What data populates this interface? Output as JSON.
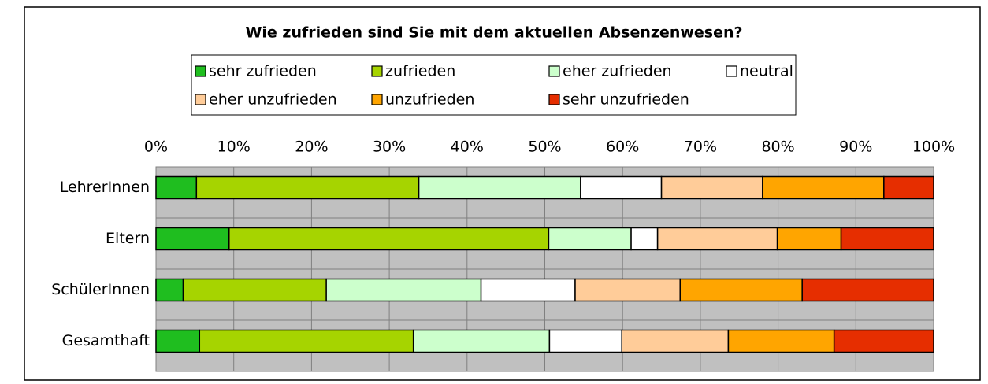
{
  "chart_data": {
    "type": "stacked-bar-horizontal",
    "title": "Wie zufrieden sind Sie mit dem aktuellen Absenzenwesen?",
    "categories": [
      "LehrerInnen",
      "Eltern",
      "SchülerInnen",
      "Gesamthaft"
    ],
    "series": [
      {
        "name": "sehr zufrieden",
        "color": "#1fbe1f",
        "values": [
          5.2,
          9.4,
          3.5,
          5.6
        ]
      },
      {
        "name": "zufrieden",
        "color": "#a6d400",
        "values": [
          28.6,
          41.1,
          18.4,
          27.5
        ]
      },
      {
        "name": "eher zufrieden",
        "color": "#ccffcc",
        "values": [
          20.8,
          10.6,
          19.9,
          17.5
        ]
      },
      {
        "name": "neutral",
        "color": "#ffffff",
        "values": [
          10.4,
          3.4,
          12.1,
          9.3
        ]
      },
      {
        "name": "eher unzufrieden",
        "color": "#ffcc99",
        "values": [
          13.0,
          15.4,
          13.5,
          13.7
        ]
      },
      {
        "name": "unzufrieden",
        "color": "#ffa500",
        "values": [
          15.6,
          8.2,
          15.7,
          13.6
        ]
      },
      {
        "name": "sehr unzufrieden",
        "color": "#e62e00",
        "values": [
          6.4,
          11.9,
          16.9,
          12.8
        ]
      }
    ],
    "xlim": [
      0,
      100
    ],
    "xticks": [
      {
        "value": 0,
        "label": "0%"
      },
      {
        "value": 10,
        "label": "10%"
      },
      {
        "value": 20,
        "label": "20%"
      },
      {
        "value": 30,
        "label": "30%"
      },
      {
        "value": 40,
        "label": "40%"
      },
      {
        "value": 50,
        "label": "50%"
      },
      {
        "value": 60,
        "label": "60%"
      },
      {
        "value": 70,
        "label": "70%"
      },
      {
        "value": 80,
        "label": "80%"
      },
      {
        "value": 90,
        "label": "90%"
      },
      {
        "value": 100,
        "label": "100%"
      }
    ],
    "grid": true,
    "legend": "top"
  }
}
